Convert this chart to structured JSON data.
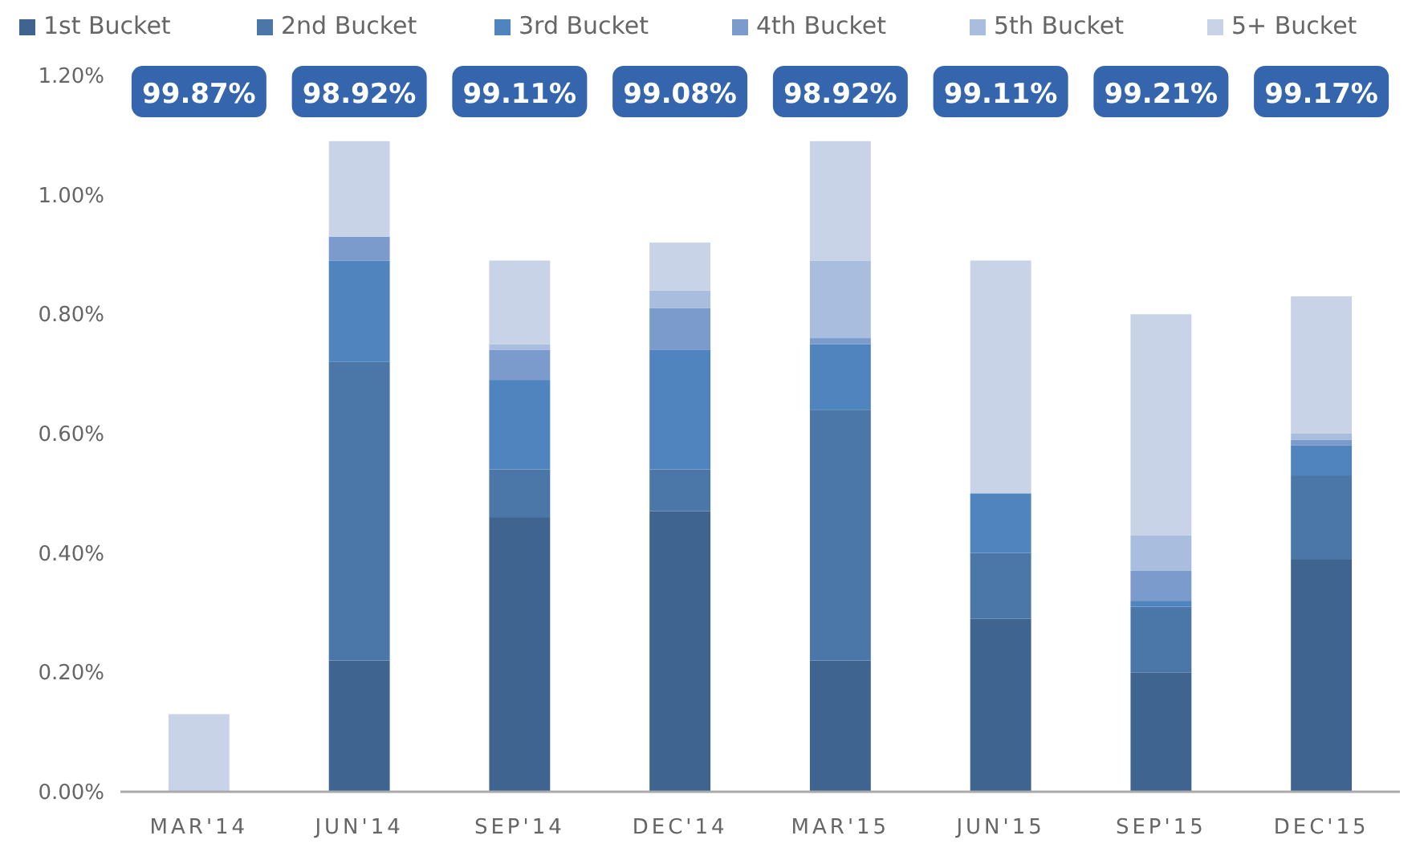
{
  "chart_data": {
    "type": "bar",
    "stacked": true,
    "legend": "top",
    "categories": [
      "MAR'14",
      "JUN'14",
      "SEP'14",
      "DEC'14",
      "MAR'15",
      "JUN'15",
      "SEP'15",
      "DEC'15"
    ],
    "series": [
      {
        "name": "1st Bucket",
        "color": "#3f6490",
        "values": [
          0,
          0.22,
          0.46,
          0.47,
          0.22,
          0.29,
          0.2,
          0.39
        ]
      },
      {
        "name": "2nd Bucket",
        "color": "#4a76a8",
        "values": [
          0,
          0.5,
          0.08,
          0.07,
          0.42,
          0.11,
          0.11,
          0.14
        ]
      },
      {
        "name": "3rd Bucket",
        "color": "#5084bf",
        "values": [
          0,
          0.17,
          0.15,
          0.2,
          0.11,
          0.1,
          0.01,
          0.05
        ]
      },
      {
        "name": "4th Bucket",
        "color": "#7a9bcb",
        "values": [
          0,
          0.04,
          0.05,
          0.07,
          0.01,
          0,
          0.05,
          0.01
        ]
      },
      {
        "name": "5th Bucket",
        "color": "#a9bedf",
        "values": [
          0,
          0,
          0.01,
          0.03,
          0.13,
          0,
          0.06,
          0.01
        ]
      },
      {
        "name": "5+ Bucket",
        "color": "#c8d3e8",
        "values": [
          0.13,
          0.16,
          0.14,
          0.08,
          0.2,
          0.39,
          0.37,
          0.23
        ]
      }
    ],
    "ylim": [
      0,
      1.2
    ],
    "yticks": [
      {
        "value": 0,
        "label": "0.00%"
      },
      {
        "value": 0.2,
        "label": "0.20%"
      },
      {
        "value": 0.4,
        "label": "0.40%"
      },
      {
        "value": 0.6,
        "label": "0.60%"
      },
      {
        "value": 0.8,
        "label": "0.80%"
      },
      {
        "value": 1,
        "label": "1.00%"
      },
      {
        "value": 1.2,
        "label": "1.20%"
      }
    ],
    "annotations": [
      "99.87%",
      "98.92%",
      "99.11%",
      "99.08%",
      "98.92%",
      "99.11%",
      "99.21%",
      "99.17%"
    ]
  }
}
